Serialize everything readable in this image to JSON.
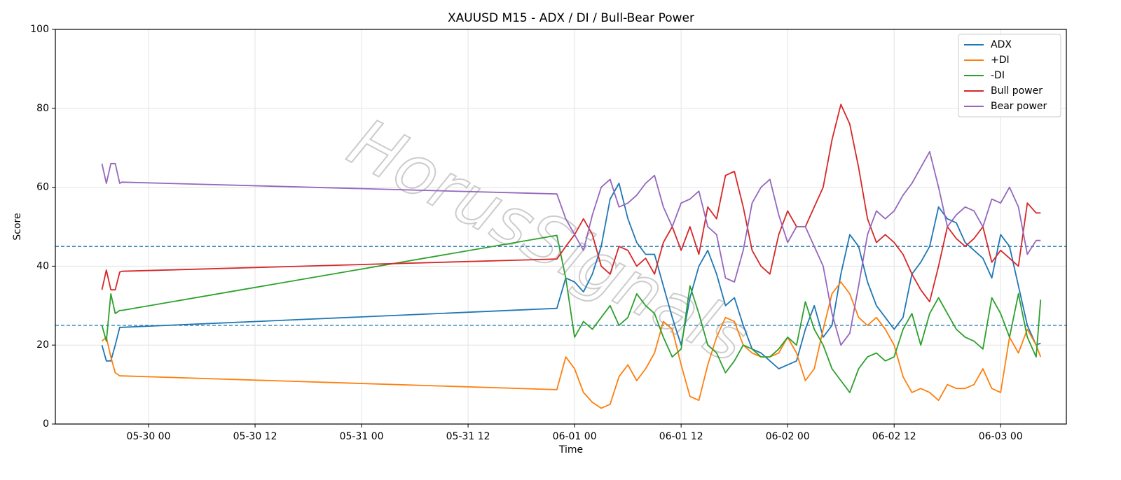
{
  "chart_data": {
    "type": "line",
    "title": "XAUUSD M15 - ADX / DI / Bull-Bear Power",
    "x_label": "Time",
    "y_label": "Score",
    "watermark": "HorusSignals",
    "x": [
      "05-29 18:45",
      "05-29 19:15",
      "05-29 19:45",
      "05-29 20:15",
      "05-29 20:45",
      "05-29 21:00",
      "05-31 22:00",
      "05-31 23:00",
      "06-01 00:00",
      "06-01 01:00",
      "06-01 02:00",
      "06-01 03:00",
      "06-01 04:00",
      "06-01 05:00",
      "06-01 06:00",
      "06-01 07:00",
      "06-01 08:00",
      "06-01 09:00",
      "06-01 10:00",
      "06-01 11:00",
      "06-01 12:00",
      "06-01 13:00",
      "06-01 14:00",
      "06-01 15:00",
      "06-01 16:00",
      "06-01 17:00",
      "06-01 18:00",
      "06-01 19:00",
      "06-01 20:00",
      "06-01 21:00",
      "06-01 22:00",
      "06-01 23:00",
      "06-02 00:00",
      "06-02 01:00",
      "06-02 02:00",
      "06-02 03:00",
      "06-02 04:00",
      "06-02 05:00",
      "06-02 06:00",
      "06-02 07:00",
      "06-02 08:00",
      "06-02 09:00",
      "06-02 10:00",
      "06-02 11:00",
      "06-02 12:00",
      "06-02 13:00",
      "06-02 14:00",
      "06-02 15:00",
      "06-02 16:00",
      "06-02 17:00",
      "06-02 18:00",
      "06-02 19:00",
      "06-02 20:00",
      "06-02 21:00",
      "06-02 22:00",
      "06-02 23:00",
      "06-03 00:00",
      "06-03 01:00",
      "06-03 02:00",
      "06-03 03:00",
      "06-03 04:00",
      "06-03 04:30"
    ],
    "series": [
      {
        "name": "ADX",
        "color": "#1f77b4",
        "values": [
          20,
          16,
          16,
          20,
          24.5,
          24.5,
          29.3,
          37,
          36,
          33.5,
          38,
          45,
          57,
          61,
          52,
          46,
          43,
          43,
          35,
          27,
          20,
          32,
          40,
          44,
          38,
          30,
          32,
          25,
          19,
          18,
          16,
          14,
          15,
          16,
          24,
          30,
          22,
          25,
          38,
          48,
          45,
          36,
          30,
          27,
          24,
          27,
          38,
          41,
          45,
          55,
          52,
          51,
          46,
          44,
          42,
          37,
          48,
          45,
          35,
          25,
          20,
          20.5
        ]
      },
      {
        "name": "+DI",
        "color": "#ff7f0e",
        "values": [
          21,
          22,
          17,
          13,
          12.2,
          12.2,
          8.7,
          17,
          14,
          8,
          5.5,
          4,
          5,
          12,
          15,
          11,
          14,
          18,
          26,
          24,
          15,
          7,
          6,
          15,
          22,
          27,
          26,
          20,
          18,
          17,
          17,
          18,
          22,
          18,
          11,
          14,
          24,
          33,
          36,
          33,
          27,
          25,
          27,
          24,
          20,
          12,
          8,
          9,
          8,
          6,
          10,
          9,
          9,
          10,
          14,
          9,
          8,
          22,
          18,
          24,
          20,
          17
        ]
      },
      {
        "name": "-DI",
        "color": "#2ca02c",
        "values": [
          25,
          21,
          33,
          28,
          28.8,
          28.8,
          47.8,
          37,
          22,
          26,
          24,
          27,
          30,
          25,
          27,
          33,
          30,
          28,
          22,
          17,
          19,
          35,
          28,
          20,
          18,
          13,
          16,
          20,
          19,
          17,
          17,
          19,
          22,
          20,
          31,
          24,
          20,
          14,
          11,
          8,
          14,
          17,
          18,
          16,
          17,
          24,
          28,
          20,
          28,
          32,
          28,
          24,
          22,
          21,
          19,
          32,
          28,
          22,
          33,
          22,
          17,
          31.5
        ]
      },
      {
        "name": "Bull power",
        "color": "#d62728",
        "values": [
          34,
          39,
          34,
          34,
          38.5,
          38.7,
          41.8,
          45,
          48,
          52,
          48,
          40,
          38,
          45,
          44,
          40,
          42,
          38,
          46,
          50,
          44,
          50,
          43,
          55,
          52,
          63,
          64,
          55,
          44,
          40,
          38,
          48,
          54,
          50,
          50,
          55,
          60,
          72,
          81,
          76,
          65,
          52,
          46,
          48,
          46,
          43,
          38,
          34,
          31,
          40,
          50,
          47,
          45,
          47,
          50,
          41,
          44,
          42,
          40,
          56,
          53.5,
          53.5
        ]
      },
      {
        "name": "Bear power",
        "color": "#9467bd",
        "values": [
          66,
          61,
          66,
          66,
          61,
          61.3,
          58.3,
          52,
          48,
          44,
          53,
          60,
          62,
          55,
          56,
          58,
          61,
          63,
          55,
          50,
          56,
          57,
          59,
          50,
          48,
          37,
          36,
          44,
          56,
          60,
          62,
          53,
          46,
          50,
          50,
          45,
          40,
          28,
          20,
          23,
          35,
          48,
          54,
          52,
          54,
          58,
          61,
          65,
          69,
          60,
          50,
          53,
          55,
          54,
          50,
          57,
          56,
          60,
          55,
          43,
          46.5,
          46.5
        ]
      }
    ],
    "hlines": [
      45,
      25
    ],
    "hline_color": "#1f77b4",
    "xlim": [
      "05-29 13:30",
      "06-03 07:24"
    ],
    "xticks": [
      "05-30 00",
      "05-30 12",
      "05-31 00",
      "05-31 12",
      "06-01 00",
      "06-01 12",
      "06-02 00",
      "06-02 12",
      "06-03 00"
    ],
    "ylim": [
      0,
      100
    ],
    "yticks": [
      0,
      20,
      40,
      60,
      80,
      100
    ],
    "grid": true,
    "legend": "upper right"
  }
}
